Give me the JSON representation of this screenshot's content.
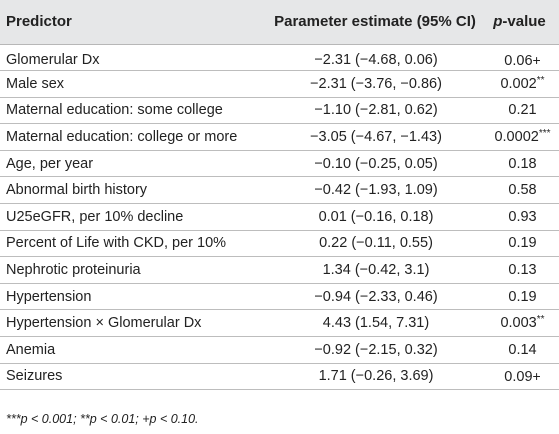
{
  "table": {
    "headers": {
      "predictor": "Predictor",
      "estimate": "Parameter estimate (95% CI)",
      "pvalue_italic": "p",
      "pvalue_rest": "-value"
    },
    "rows": [
      {
        "predictor": "Glomerular Dx",
        "estimate": "−2.31 (−4.68, 0.06)",
        "p": "0.06",
        "mark": "+"
      },
      {
        "predictor": "Male sex",
        "estimate": "−2.31 (−3.76, −0.86)",
        "p": "0.002",
        "mark": "**"
      },
      {
        "predictor": "Maternal education: some college",
        "estimate": "−1.10 (−2.81, 0.62)",
        "p": "0.21",
        "mark": ""
      },
      {
        "predictor": "Maternal education: college or more",
        "estimate": "−3.05 (−4.67, −1.43)",
        "p": "0.0002",
        "mark": "***"
      },
      {
        "predictor": "Age, per year",
        "estimate": "−0.10 (−0.25, 0.05)",
        "p": "0.18",
        "mark": ""
      },
      {
        "predictor": "Abnormal birth history",
        "estimate": "−0.42 (−1.93, 1.09)",
        "p": "0.58",
        "mark": ""
      },
      {
        "predictor": "U25eGFR, per 10% decline",
        "estimate": "0.01 (−0.16, 0.18)",
        "p": "0.93",
        "mark": ""
      },
      {
        "predictor": "Percent of Life with CKD, per 10%",
        "estimate": "0.22 (−0.11, 0.55)",
        "p": "0.19",
        "mark": ""
      },
      {
        "predictor": "Nephrotic proteinuria",
        "estimate": "1.34 (−0.42, 3.1)",
        "p": "0.13",
        "mark": ""
      },
      {
        "predictor": "Hypertension",
        "estimate": "−0.94 (−2.33, 0.46)",
        "p": "0.19",
        "mark": ""
      },
      {
        "predictor": "Hypertension × Glomerular Dx",
        "estimate": "4.43 (1.54, 7.31)",
        "p": "0.003",
        "mark": "**"
      },
      {
        "predictor": "Anemia",
        "estimate": "−0.92 (−2.15, 0.32)",
        "p": "0.14",
        "mark": ""
      },
      {
        "predictor": "Seizures",
        "estimate": "1.71 (−0.26, 3.69)",
        "p": "0.09",
        "mark": "+"
      }
    ]
  },
  "footnote": "***p < 0.001; **p < 0.01; +p < 0.10.",
  "colors": {
    "header_bg": "#e6e7e8",
    "rule": "#bdbdbd",
    "text": "#222222"
  }
}
